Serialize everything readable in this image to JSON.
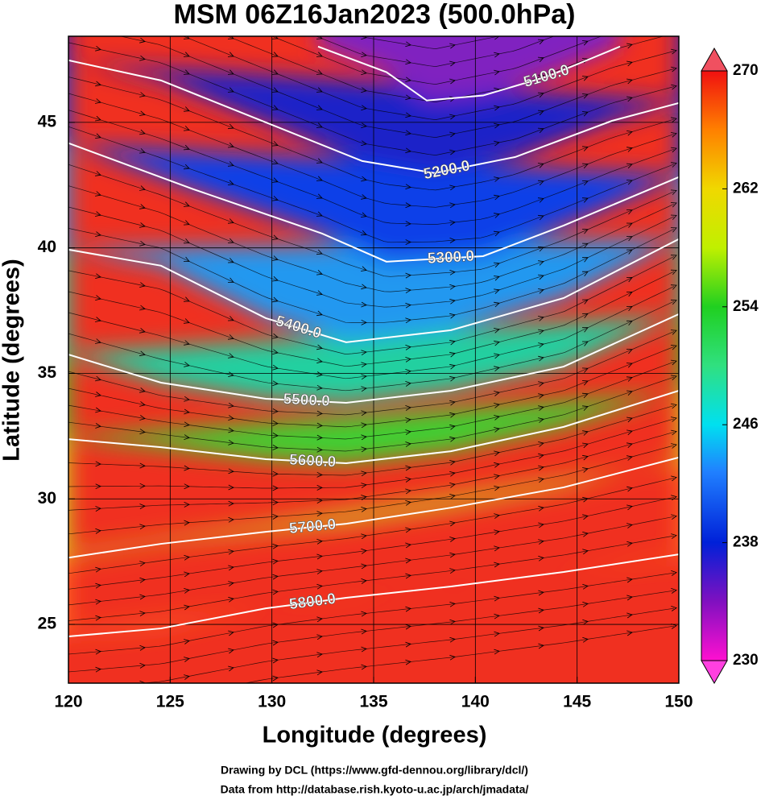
{
  "chart_data": {
    "type": "contour-map",
    "title": "MSM 06Z16Jan2023 (500.0hPa)",
    "x_label": "Longitude (degrees)",
    "y_label": "Latitude  (degrees)",
    "xlim": [
      120,
      150
    ],
    "xticks": [
      120,
      125,
      130,
      135,
      140,
      145,
      150
    ],
    "ylim": [
      22.66,
      48.43
    ],
    "yticks": [
      25,
      30,
      35,
      40,
      45
    ],
    "grid": true,
    "colorbar": {
      "lim": [
        230,
        270
      ],
      "ticks": [
        230,
        238,
        246,
        254,
        262,
        270
      ]
    },
    "contours": [
      {
        "level": {
          "value": 5100,
          "label": "5100.0"
        },
        "lon": [
          132.27,
          135.63,
          137.61,
          140.38,
          143.55,
          147.11
        ],
        "lat": [
          48.02,
          47.0,
          45.87,
          46.07,
          46.83,
          48.02
        ]
      },
      {
        "level": {
          "value": 5200,
          "label": "5200.0"
        },
        "lon": [
          120,
          124.55,
          134.44,
          138.0,
          141.96,
          146.71,
          150
        ],
        "lat": [
          47.47,
          46.67,
          43.46,
          42.98,
          43.62,
          45.06,
          45.77
        ]
      },
      {
        "level": {
          "value": 5300,
          "label": "5300.0"
        },
        "lon": [
          120,
          126.13,
          132.47,
          135.63,
          140.38,
          144.34,
          150
        ],
        "lat": [
          44.17,
          42.34,
          40.57,
          39.45,
          39.67,
          40.89,
          42.82
        ]
      },
      {
        "level": {
          "value": 5400,
          "label": "5400.0"
        },
        "lon": [
          120,
          124.55,
          129.7,
          133.65,
          138.8,
          144.34,
          150
        ],
        "lat": [
          39.93,
          39.29,
          37.2,
          36.24,
          36.72,
          38.0,
          40.35
        ]
      },
      {
        "level": {
          "value": 5500,
          "label": "5500.0"
        },
        "lon": [
          120,
          124.55,
          129.7,
          133.65,
          138.8,
          144.34,
          150
        ],
        "lat": [
          35.75,
          34.63,
          33.99,
          33.83,
          34.31,
          35.27,
          37.36
        ]
      },
      {
        "level": {
          "value": 5600,
          "label": "5600.0"
        },
        "lon": [
          120,
          124.55,
          129.7,
          133.65,
          138.8,
          144.34,
          150
        ],
        "lat": [
          32.38,
          32.06,
          31.58,
          31.42,
          31.9,
          32.87,
          34.31
        ]
      },
      {
        "level": {
          "value": 5700,
          "label": "5700.0"
        },
        "lon": [
          120,
          124.55,
          129.7,
          133.65,
          138.8,
          144.34,
          150
        ],
        "lat": [
          27.66,
          28.21,
          28.69,
          29.01,
          29.65,
          30.46,
          31.65
        ]
      },
      {
        "level": {
          "value": 5800,
          "label": "5800.0"
        },
        "lon": [
          120,
          124.55,
          129.7,
          133.65,
          138.8,
          144.34,
          150
        ],
        "lat": [
          24.52,
          24.84,
          25.64,
          26.06,
          26.51,
          27.09,
          27.79
        ]
      }
    ],
    "credits": [
      "Drawing by DCL (https://www.gfd-dennou.org/library/dcl/)",
      "Data from http://database.rish.kyoto-u.ac.jp/arch/jmadata/"
    ]
  }
}
